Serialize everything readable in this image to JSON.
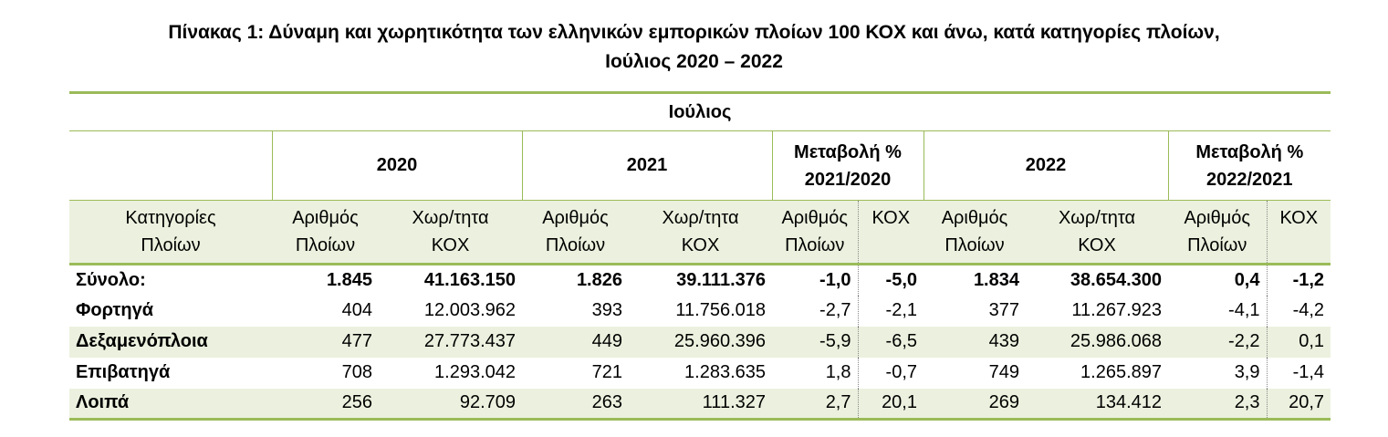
{
  "title": {
    "line1": "Πίνακας 1: Δύναμη και χωρητικότητα των ελληνικών εμπορικών πλοίων 100 ΚΟΧ και άνω, κατά κατηγορίες πλοίων,",
    "line2": "Ιούλιος 2020 – 2022"
  },
  "table": {
    "group_header": "Ιούλιος",
    "year_headers": {
      "y2020": "2020",
      "y2021": "2021",
      "change1_line1": "Μεταβολή %",
      "change1_line2": "2021/2020",
      "y2022": "2022",
      "change2_line1": "Μεταβολή %",
      "change2_line2": "2022/2021"
    },
    "sub_headers": {
      "category_line1": "Κατηγορίες",
      "category_line2": "Πλοίων",
      "number_line1": "Αριθμός",
      "number_line2": "Πλοίων",
      "capacity_line1": "Χωρ/τητα",
      "capacity_line2": "ΚΟΧ",
      "number_short_line1": "Αριθμός",
      "number_short_line2": "Πλοίων",
      "kox": "ΚΟΧ"
    },
    "rows": [
      {
        "category": "Σύνολο:",
        "n2020": "1.845",
        "c2020": "41.163.150",
        "n2021": "1.826",
        "c2021": "39.111.376",
        "pn1": "-1,0",
        "pc1": "-5,0",
        "n2022": "1.834",
        "c2022": "38.654.300",
        "pn2": "0,4",
        "pc2": "-1,2"
      },
      {
        "category": "Φορτηγά",
        "n2020": "404",
        "c2020": "12.003.962",
        "n2021": "393",
        "c2021": "11.756.018",
        "pn1": "-2,7",
        "pc1": "-2,1",
        "n2022": "377",
        "c2022": "11.267.923",
        "pn2": "-4,1",
        "pc2": "-4,2"
      },
      {
        "category": "Δεξαμενόπλοια",
        "n2020": "477",
        "c2020": "27.773.437",
        "n2021": "449",
        "c2021": "25.960.396",
        "pn1": "-5,9",
        "pc1": "-6,5",
        "n2022": "439",
        "c2022": "25.986.068",
        "pn2": "-2,2",
        "pc2": "0,1"
      },
      {
        "category": "Επιβατηγά",
        "n2020": "708",
        "c2020": "1.293.042",
        "n2021": "721",
        "c2021": "1.283.635",
        "pn1": "1,8",
        "pc1": "-0,7",
        "n2022": "749",
        "c2022": "1.265.897",
        "pn2": "3,9",
        "pc2": "-1,4"
      },
      {
        "category": "Λοιπά",
        "n2020": "256",
        "c2020": "92.709",
        "n2021": "263",
        "c2021": "111.327",
        "pn1": "2,7",
        "pc1": "20,1",
        "n2022": "269",
        "c2022": "134.412",
        "pn2": "2,3",
        "pc2": "20,7"
      }
    ]
  }
}
